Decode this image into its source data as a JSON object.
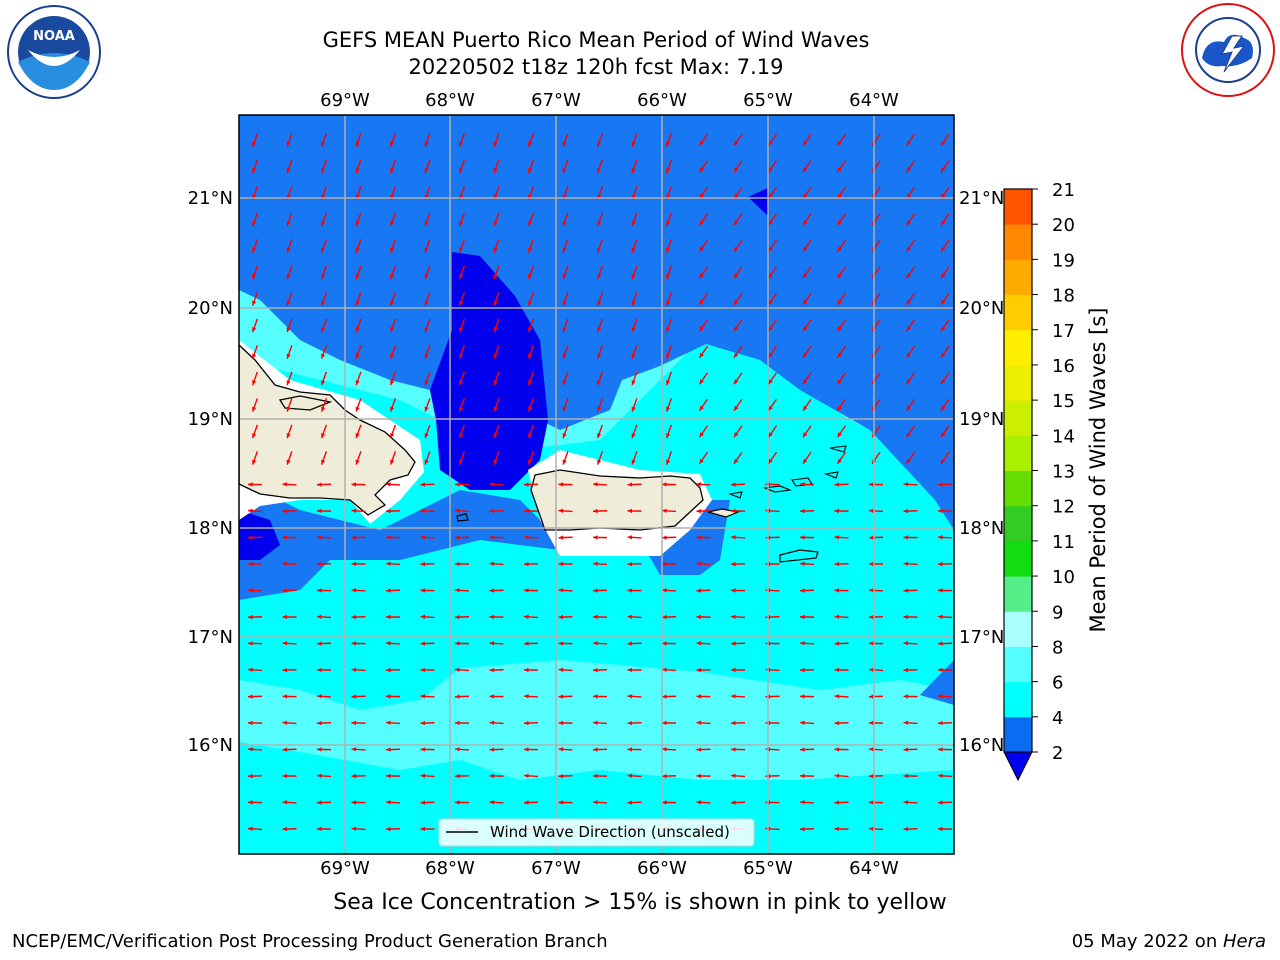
{
  "header": {
    "title_line1": "GEFS MEAN Puerto Rico Mean Period of Wind Waves",
    "title_line2": "20220502 t18z 120h fcst   Max: 7.19"
  },
  "logos": {
    "left": {
      "name": "NOAA",
      "ring_text": "NATIONAL OCEANIC AND ATMOSPHERIC ADMINISTRATION • U.S. DEPARTMENT OF COMMERCE"
    },
    "right": {
      "name": "NATIONAL WEATHER SERVICE"
    }
  },
  "map": {
    "lon_labels": [
      "69°W",
      "68°W",
      "67°W",
      "66°W",
      "65°W",
      "64°W"
    ],
    "lat_labels": [
      "21°N",
      "20°N",
      "19°N",
      "18°N",
      "17°N",
      "16°N"
    ],
    "legend_label": "Wind Wave Direction (unscaled)",
    "arrow_color": "#ff0000",
    "land_color": "#efecd9"
  },
  "colorbar": {
    "label": "Mean Period of Wind Waves [s]",
    "ticks": [
      "2",
      "4",
      "6",
      "8",
      "9",
      "10",
      "11",
      "12",
      "13",
      "14",
      "15",
      "16",
      "17",
      "18",
      "19",
      "20",
      "21"
    ],
    "colors": [
      "#0a6cf0",
      "#00ffff",
      "#55ffff",
      "#aaffff",
      "#55ee88",
      "#11dd11",
      "#33cc22",
      "#66dd00",
      "#aaee00",
      "#ccee00",
      "#eeee00",
      "#ffee00",
      "#ffcc00",
      "#ffaa00",
      "#ff8800",
      "#ff5500",
      "#ff2200",
      "#ff0000"
    ],
    "under_color": "#0000ee"
  },
  "notes": {
    "sea_ice": "Sea Ice Concentration > 15% is shown in pink to yellow"
  },
  "footer": {
    "left": "NCEP/EMC/Verification Post Processing Product Generation Branch",
    "date": "05 May 2022 on ",
    "machine": "Hera"
  }
}
